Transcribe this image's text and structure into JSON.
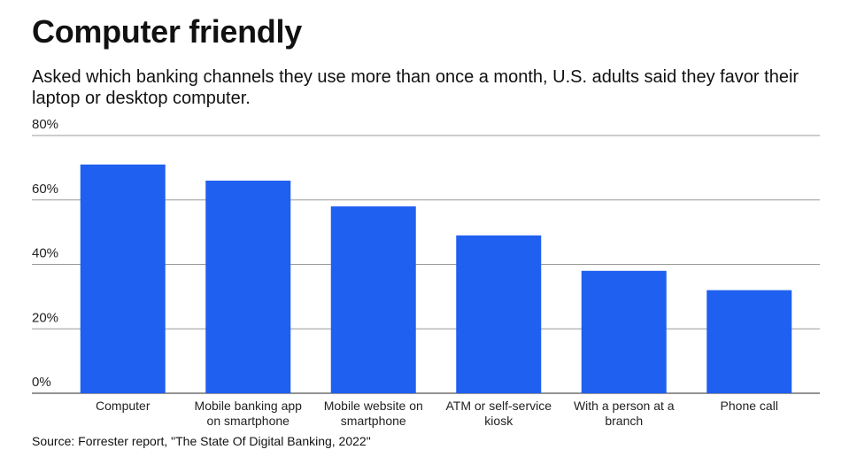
{
  "header": {
    "title": "Computer friendly",
    "subtitle": "Asked which banking channels they use more than once a month, U.S. adults said they favor their laptop or desktop computer."
  },
  "footer": {
    "source": "Source: Forrester report, \"The State Of Digital Banking, 2022\""
  },
  "colors": {
    "bar": "#2060f0",
    "gridline": "#9a9a9a",
    "axis": "#555555"
  },
  "chart_data": {
    "type": "bar",
    "title": "Computer friendly",
    "categories": [
      [
        "Computer"
      ],
      [
        "Mobile banking app",
        "on smartphone"
      ],
      [
        "Mobile website on",
        "smartphone"
      ],
      [
        "ATM or self-service",
        "kiosk"
      ],
      [
        "With a person at a",
        "branch"
      ],
      [
        "Phone call"
      ]
    ],
    "values": [
      71,
      66,
      58,
      49,
      38,
      32
    ],
    "unit": "%",
    "ylim": [
      0,
      80
    ],
    "yticks": [
      {
        "value": 0,
        "label": "0%"
      },
      {
        "value": 20,
        "label": "20%"
      },
      {
        "value": 40,
        "label": "40%"
      },
      {
        "value": 60,
        "label": "60%"
      },
      {
        "value": 80,
        "label": "80%"
      }
    ],
    "xlabel": "",
    "ylabel": "",
    "grid": true,
    "legend": "none"
  }
}
